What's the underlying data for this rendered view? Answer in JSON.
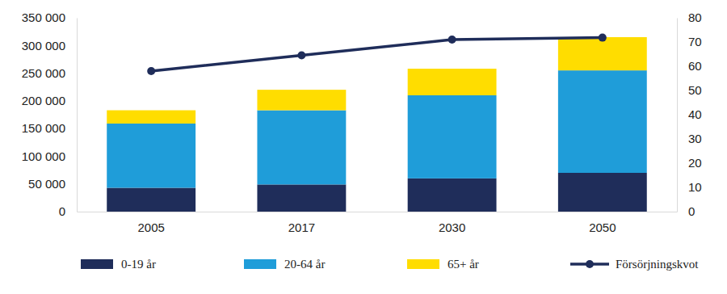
{
  "chart_data": {
    "type": "bar",
    "stacked": true,
    "grid": false,
    "legend": "bottom",
    "categories": [
      "2005",
      "2017",
      "2030",
      "2050"
    ],
    "series": [
      {
        "name": "0-19 år",
        "color": "#1f2d5a",
        "values": [
          43000,
          49000,
          60000,
          70000
        ]
      },
      {
        "name": "20-64 år",
        "color": "#1f9dd9",
        "values": [
          116000,
          134000,
          150000,
          185000
        ]
      },
      {
        "name": "65+ år",
        "color": "#ffdd00",
        "values": [
          24000,
          37000,
          48000,
          60000
        ]
      },
      {
        "name": "Försörjningskvot",
        "type": "line",
        "axis": "y2",
        "color": "#1f2d5a",
        "marker": "circle",
        "line_style": "solid",
        "values": [
          58,
          64.5,
          71,
          71.8
        ]
      }
    ],
    "ylim": [
      0,
      350000
    ],
    "yticks": [
      0,
      {
        "value": 50000,
        "label": "50 000"
      },
      {
        "value": 100000,
        "label": "100 000"
      },
      {
        "value": 150000,
        "label": "150 000"
      },
      {
        "value": 200000,
        "label": "200 000"
      },
      {
        "value": 250000,
        "label": "250 000"
      },
      {
        "value": 300000,
        "label": "300 000"
      },
      {
        "value": 350000,
        "label": "350 000"
      }
    ],
    "y2lim": [
      0,
      80
    ],
    "y2ticks": [
      0,
      10,
      20,
      30,
      40,
      50,
      60,
      70,
      80
    ]
  }
}
